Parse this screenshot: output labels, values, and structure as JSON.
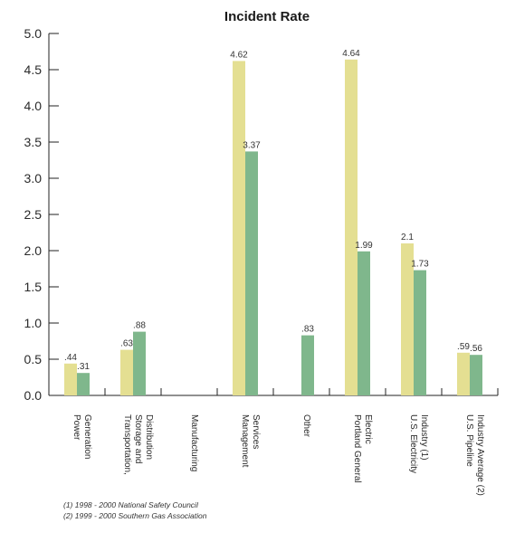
{
  "chart_data": {
    "type": "bar",
    "title": "Incident Rate",
    "categories": [
      [
        "Power",
        "Generation"
      ],
      [
        "Transportation,",
        "Storage and",
        "Distribution"
      ],
      [
        "Manufacturing"
      ],
      [
        "Management",
        "Services"
      ],
      [
        "Other"
      ],
      [
        "Portland General",
        "Electric"
      ],
      [
        "U.S. Electricity",
        "Industry (1)"
      ],
      [
        "U.S. Pipeline",
        "Industry Average (2)"
      ]
    ],
    "series": [
      {
        "values": [
          0.44,
          0.63,
          null,
          4.62,
          null,
          4.64,
          2.1,
          0.59
        ],
        "labels": [
          ".44",
          ".63",
          "",
          "4.62",
          "",
          "4.64",
          "2.1",
          ".59"
        ],
        "color": "#e4df92"
      },
      {
        "values": [
          0.31,
          0.88,
          null,
          3.37,
          0.83,
          1.99,
          1.73,
          0.56
        ],
        "labels": [
          ".31",
          ".88",
          "",
          "3.37",
          ".83",
          "1.99",
          "1.73",
          ".56"
        ],
        "color": "#7fb78c"
      }
    ],
    "yticks": [
      "0.0",
      "0.5",
      "1.0",
      "1.5",
      "2.0",
      "2.5",
      "3.0",
      "3.5",
      "4.0",
      "4.5",
      "5.0"
    ],
    "ylim": [
      0,
      5
    ],
    "grid": false,
    "footnotes": [
      "(1) 1998 - 2000 National Safety Council",
      "(2) 1999 - 2000 Southern Gas Association"
    ]
  }
}
